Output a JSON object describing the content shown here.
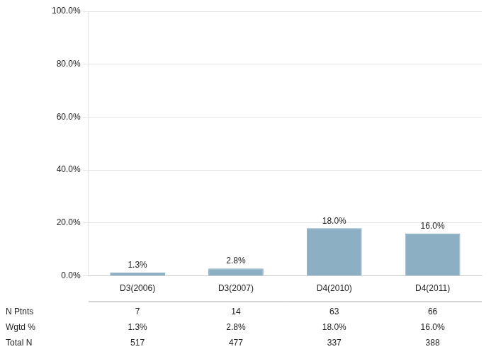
{
  "chart_data": {
    "type": "bar",
    "categories": [
      "D3(2006)",
      "D3(2007)",
      "D4(2010)",
      "D4(2011)"
    ],
    "values": [
      1.3,
      2.8,
      18.0,
      16.0
    ],
    "value_labels": [
      "1.3%",
      "2.8%",
      "18.0%",
      "16.0%"
    ],
    "data_labels": true,
    "color": "#8dafc4",
    "ylim": [
      0,
      100
    ],
    "yticks": [
      {
        "value": 0,
        "label": "0.0%"
      },
      {
        "value": 20,
        "label": "20.0%"
      },
      {
        "value": 40,
        "label": "40.0%"
      },
      {
        "value": 60,
        "label": "60.0%"
      },
      {
        "value": 80,
        "label": "80.0%"
      },
      {
        "value": 100,
        "label": "100.0%"
      }
    ],
    "grid": true,
    "table_row_labels": [
      "N Ptnts",
      "Wgtd %",
      "Total N"
    ],
    "table_data": [
      [
        "7",
        "14",
        "63",
        "66"
      ],
      [
        "1.3%",
        "2.8%",
        "18.0%",
        "16.0%"
      ],
      [
        "517",
        "477",
        "337",
        "388"
      ]
    ]
  }
}
